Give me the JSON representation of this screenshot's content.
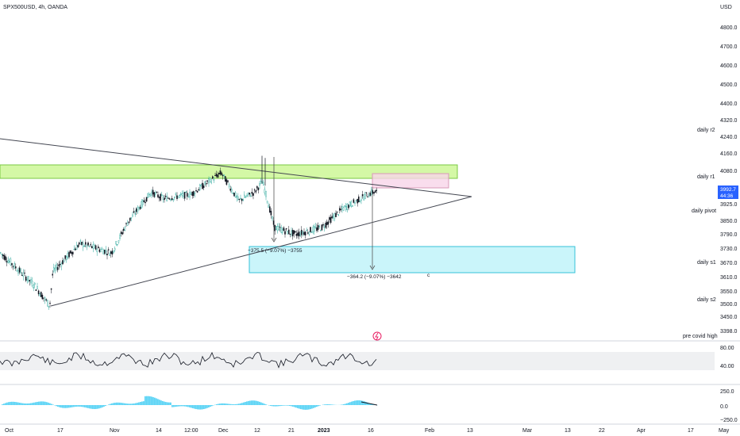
{
  "header": {
    "title": "SPX500USD, 4h, OANDA",
    "currency": "USD"
  },
  "price_axis": {
    "ticks": [
      "4800.0",
      "4700.0",
      "4600.0",
      "4500.0",
      "4400.0",
      "4320.0",
      "4240.0",
      "4160.0",
      "4080.0",
      "3925.0",
      "3850.0",
      "3790.0",
      "3730.0",
      "3670.0",
      "3610.0",
      "3550.0",
      "3500.0",
      "3450.0",
      "3398.0"
    ],
    "current_price": "3992.7",
    "countdown": "44:36"
  },
  "time_axis": {
    "labels": [
      "Oct",
      "17",
      "Nov",
      "14",
      "12:00",
      "Dec",
      "12",
      "21",
      "2023",
      "16",
      "Feb",
      "13",
      "Mar",
      "13",
      "22",
      "Apr",
      "17",
      "May"
    ]
  },
  "pivots": [
    {
      "label": "daily r2"
    },
    {
      "label": "daily r1"
    },
    {
      "label": "daily pivot"
    },
    {
      "label": "daily s1"
    },
    {
      "label": "daily s2"
    },
    {
      "label": "pre covid high"
    }
  ],
  "measurements": {
    "m1": "−375.5 (−9.07%) −3755",
    "m2": "−364.2 (−9.07%) −3642",
    "mark": "c"
  },
  "rsi_axis": {
    "ticks": [
      "80.00",
      "40.00"
    ]
  },
  "osc_axis": {
    "ticks": [
      "250.0",
      "0.0",
      "−250.0"
    ]
  },
  "colors": {
    "up": "#26a69a",
    "down": "#131722",
    "green_zone": "#b7f36b",
    "cyan_zone": "#a7eef7",
    "pink_zone": "#f8d4e8",
    "osc": "#5ad3f5",
    "price_tag": "#2962ff"
  },
  "chart_data": {
    "type": "candlestick",
    "title": "SPX500USD, 4h, OANDA",
    "x_range": [
      "Oct",
      "May"
    ],
    "y_range": [
      3398,
      4800
    ],
    "price_path": [
      [
        "Oct",
        3720
      ],
      [
        "Oct",
        3650
      ],
      [
        "Oct",
        3580
      ],
      [
        "17",
        3500
      ],
      [
        "17",
        3640
      ],
      [
        "Nov",
        3760
      ],
      [
        "Nov",
        3720
      ],
      [
        "Nov",
        3850
      ],
      [
        "14",
        3990
      ],
      [
        "14",
        3960
      ],
      [
        "12:00",
        3980
      ],
      [
        "Dec",
        4080
      ],
      [
        "Dec",
        3950
      ],
      [
        "12",
        3990
      ],
      [
        "12",
        4040
      ],
      [
        "21",
        3830
      ],
      [
        "21",
        3800
      ],
      [
        "2023",
        3830
      ],
      [
        "2023",
        3910
      ],
      [
        "16",
        3990
      ]
    ],
    "last_price": 3992.7,
    "levels": [
      {
        "label": "daily r2",
        "price": 4240
      },
      {
        "label": "daily r1",
        "price": 4080
      },
      {
        "label": "daily pivot",
        "price": 3925
      },
      {
        "label": "daily s1",
        "price": 3670
      },
      {
        "label": "daily s2",
        "price": 3530
      },
      {
        "label": "pre covid high",
        "price": 3398
      }
    ],
    "zones": [
      {
        "type": "resistance",
        "from": 4060,
        "to": 4110
      },
      {
        "type": "support",
        "from": 3620,
        "to": 3730
      },
      {
        "type": "target",
        "from": 3995,
        "to": 4050
      }
    ],
    "measurements": [
      {
        "change": -375.5,
        "percent": -9.07,
        "target": 3755
      },
      {
        "change": -364.2,
        "percent": -9.07,
        "target": 3642
      }
    ],
    "rsi_ticks": [
      80,
      40
    ],
    "osc_ticks": [
      250,
      0,
      -250
    ]
  }
}
